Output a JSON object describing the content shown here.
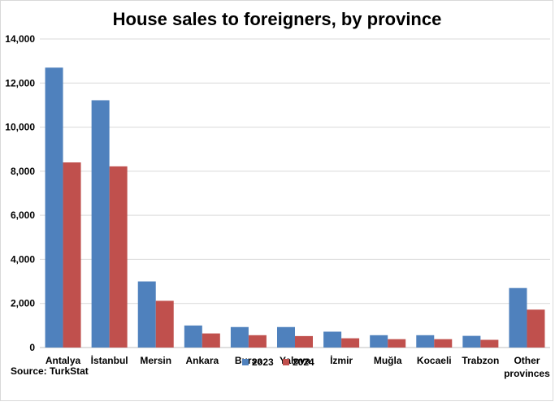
{
  "chart_data": {
    "type": "bar",
    "title": "House sales to foreigners, by province",
    "xlabel": "",
    "ylabel": "",
    "ylim": [
      0,
      14000
    ],
    "yticks": [
      "0",
      "2,000",
      "4,000",
      "6,000",
      "8,000",
      "10,000",
      "12,000",
      "14,000"
    ],
    "categories": [
      [
        "Antalya"
      ],
      [
        "İstanbul"
      ],
      [
        "Mersin"
      ],
      [
        "Ankara"
      ],
      [
        "Bursa"
      ],
      [
        "Yalova"
      ],
      [
        "İzmir"
      ],
      [
        "Muğla"
      ],
      [
        "Kocaeli"
      ],
      [
        "Trabzon"
      ],
      [
        "Other",
        "provinces"
      ]
    ],
    "series": [
      {
        "name": "2023",
        "color": "#4f81bd",
        "values": [
          12700,
          11220,
          3000,
          1000,
          930,
          930,
          720,
          560,
          560,
          530,
          2700
        ]
      },
      {
        "name": "2024",
        "color": "#c0504d",
        "values": [
          8400,
          8220,
          2120,
          640,
          560,
          520,
          420,
          380,
          380,
          350,
          1720
        ]
      }
    ],
    "grid": true,
    "legend": "bottom-center",
    "source": "Source: TurkStat"
  }
}
